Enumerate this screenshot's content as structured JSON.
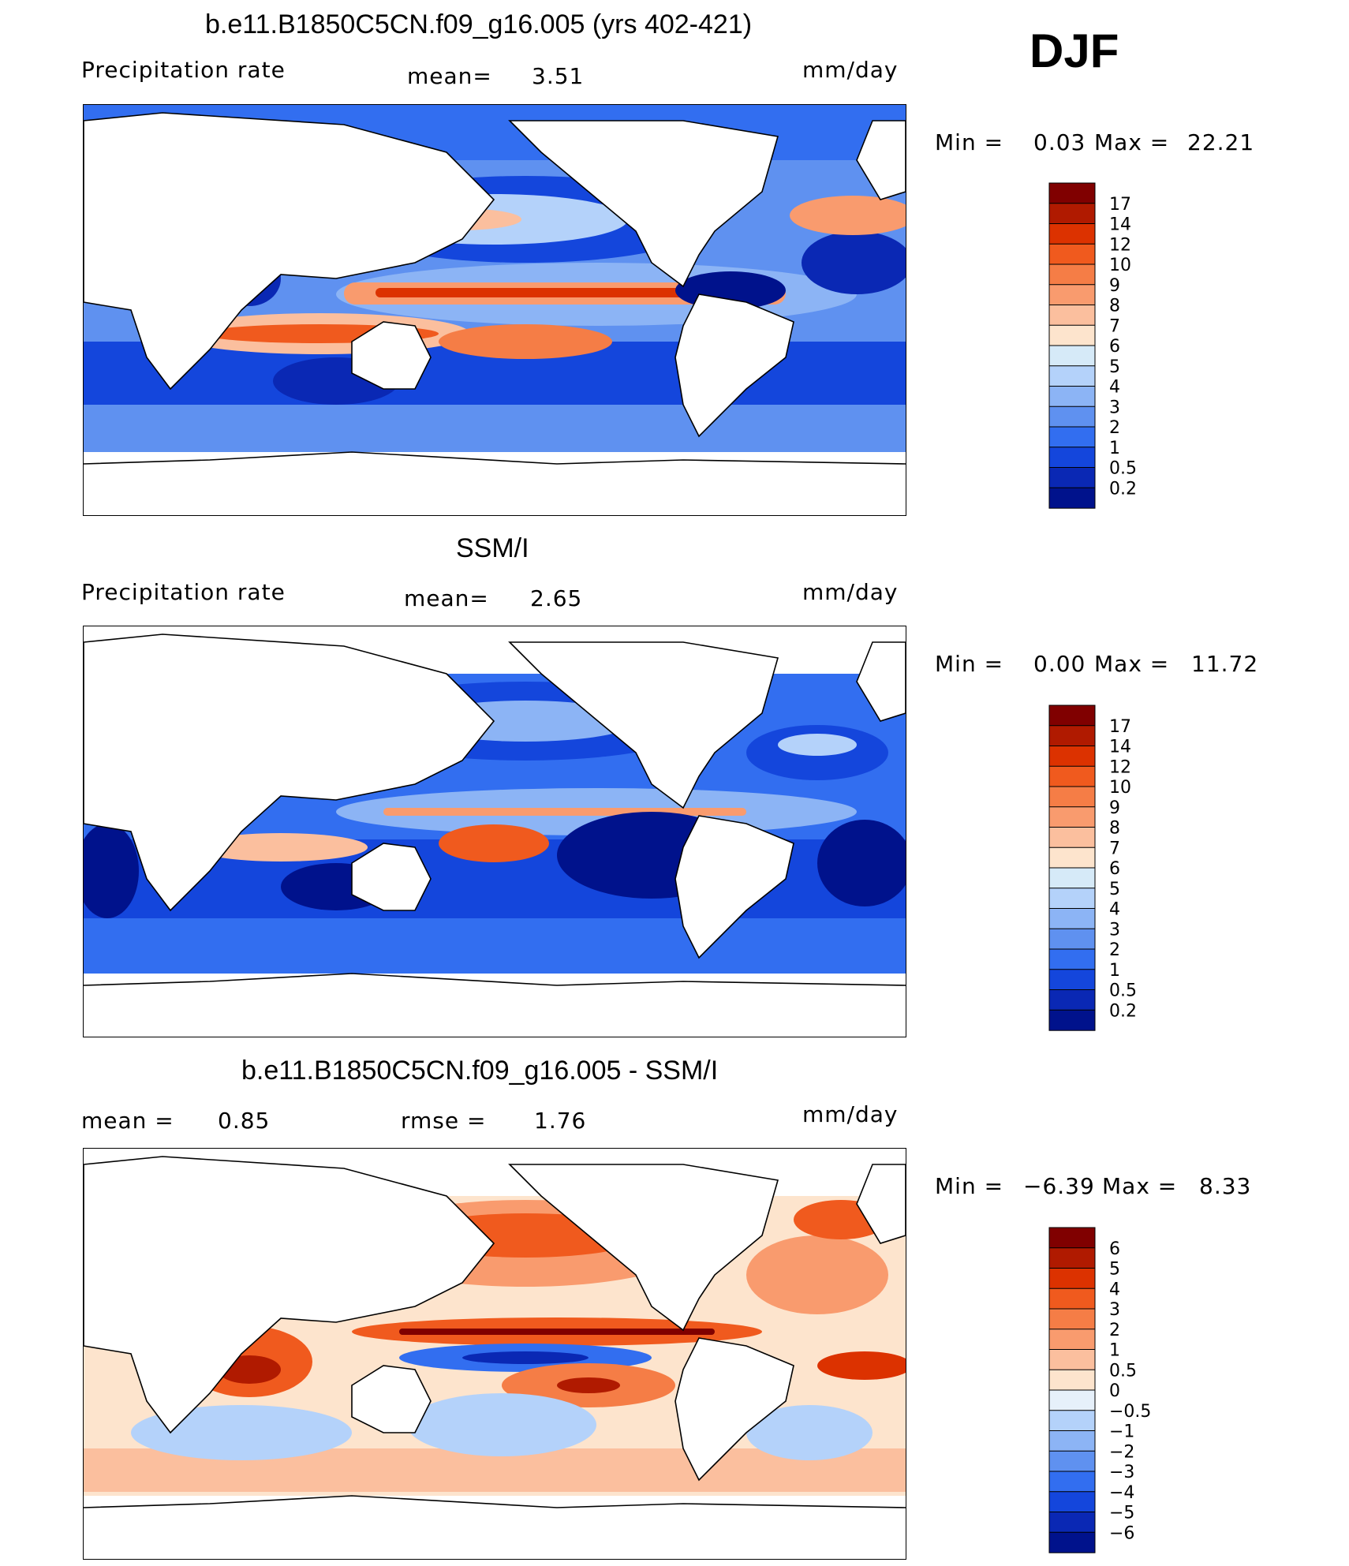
{
  "season": "DJF",
  "panels": [
    {
      "id": "model",
      "title": "b.e11.B1850C5CN.f09_g16.005 (yrs 402-421)",
      "left_label": "Precipitation  rate",
      "center_label": "mean=",
      "center_value": "3.51",
      "right_label": "mm/day",
      "minmax": {
        "min_label": "Min  =",
        "min_value": "0.03",
        "max_label": "Max  =",
        "max_value": "22.21"
      }
    },
    {
      "id": "obs",
      "title": "SSM/I",
      "left_label": "Precipitation  rate",
      "center_label": "mean=",
      "center_value": "2.65",
      "right_label": "mm/day",
      "minmax": {
        "min_label": "Min  =",
        "min_value": "0.00",
        "max_label": "Max  =",
        "max_value": "11.72"
      }
    },
    {
      "id": "diff",
      "title": "b.e11.B1850C5CN.f09_g16.005 - SSM/I",
      "left_label": "mean  =",
      "left_value": "0.85",
      "center_label": "rmse  =",
      "center_value": "1.76",
      "right_label": "mm/day",
      "minmax": {
        "min_label": "Min  =",
        "min_value": "−6.39",
        "max_label": "Max  =",
        "max_value": "8.33"
      }
    }
  ],
  "chart_data": [
    {
      "type": "heatmap",
      "title": "b.e11.B1850C5CN.f09_g16.005 (yrs 402-421)",
      "variable": "Precipitation  rate",
      "units": "mm/day",
      "mean": 3.51,
      "min": 0.03,
      "max": 22.21,
      "colorbar": {
        "levels": [
          "17",
          "14",
          "12",
          "10",
          "9",
          "8",
          "7",
          "6",
          "5",
          "4",
          "3",
          "2",
          "1",
          "0.5",
          "0.2"
        ],
        "colors": [
          "#800000",
          "#b01a00",
          "#dc3200",
          "#f05a1e",
          "#f57d46",
          "#f99b6e",
          "#fbbf9e",
          "#fde4cd",
          "#d6eaf8",
          "#b4d2fa",
          "#8cb4f5",
          "#5f91f0",
          "#326ef0",
          "#1446dc",
          "#0a28b4",
          "#00128c"
        ]
      }
    },
    {
      "type": "heatmap",
      "title": "SSM/I",
      "variable": "Precipitation  rate",
      "units": "mm/day",
      "mean": 2.65,
      "min": 0.0,
      "max": 11.72,
      "colorbar": {
        "levels": [
          "17",
          "14",
          "12",
          "10",
          "9",
          "8",
          "7",
          "6",
          "5",
          "4",
          "3",
          "2",
          "1",
          "0.5",
          "0.2"
        ],
        "colors": [
          "#800000",
          "#b01a00",
          "#dc3200",
          "#f05a1e",
          "#f57d46",
          "#f99b6e",
          "#fbbf9e",
          "#fde4cd",
          "#d6eaf8",
          "#b4d2fa",
          "#8cb4f5",
          "#5f91f0",
          "#326ef0",
          "#1446dc",
          "#0a28b4",
          "#00128c"
        ]
      }
    },
    {
      "type": "heatmap",
      "title": "b.e11.B1850C5CN.f09_g16.005 - SSM/I",
      "units": "mm/day",
      "mean": 0.85,
      "rmse": 1.76,
      "min": -6.39,
      "max": 8.33,
      "colorbar": {
        "levels": [
          "6",
          "5",
          "4",
          "3",
          "2",
          "1",
          "0.5",
          "0",
          "−0.5",
          "−1",
          "−2",
          "−3",
          "−4",
          "−5",
          "−6"
        ],
        "colors": [
          "#800000",
          "#b01a00",
          "#dc3200",
          "#f05a1e",
          "#f57d46",
          "#f99b6e",
          "#fbbf9e",
          "#fde4cd",
          "#e6f0fa",
          "#b4d2fa",
          "#8cb4f5",
          "#5f91f0",
          "#326ef0",
          "#1446dc",
          "#0a28b4",
          "#00128c"
        ]
      }
    }
  ]
}
